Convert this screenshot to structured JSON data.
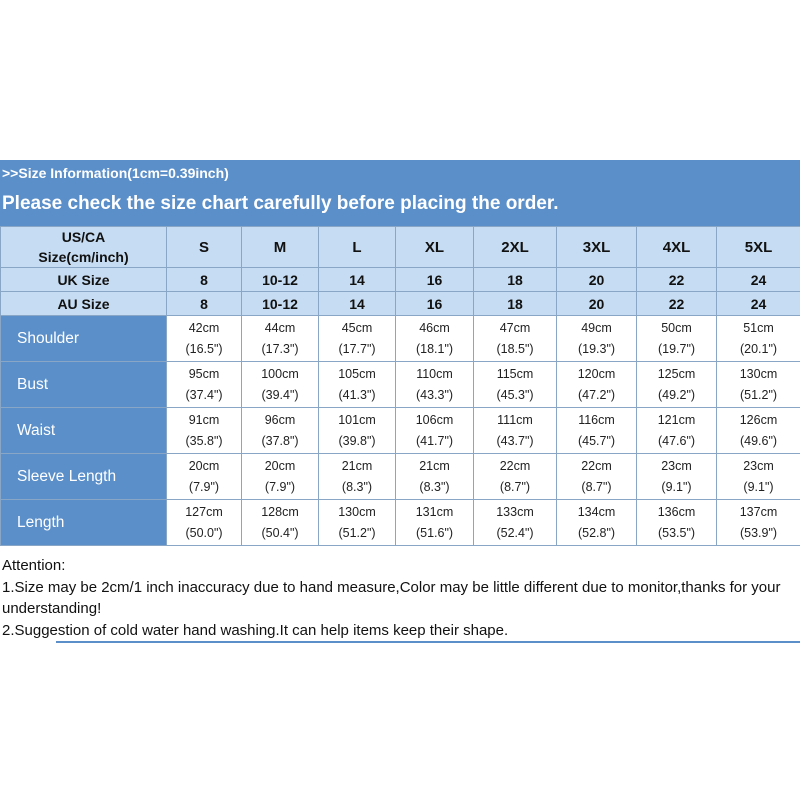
{
  "banner": {
    "info": ">>Size Information(1cm=0.39inch)",
    "notice": "Please check the size chart carefully before placing the order."
  },
  "table": {
    "corner_line1": "US/CA",
    "corner_line2": "Size(cm/inch)",
    "sizes": [
      "S",
      "M",
      "L",
      "XL",
      "2XL",
      "3XL",
      "4XL",
      "5XL"
    ],
    "uk_label": "UK Size",
    "uk": [
      "8",
      "10-12",
      "14",
      "16",
      "18",
      "20",
      "22",
      "24"
    ],
    "au_label": "AU Size",
    "au": [
      "8",
      "10-12",
      "14",
      "16",
      "18",
      "20",
      "22",
      "24"
    ],
    "rows": [
      {
        "label": "Shoulder",
        "cm": [
          "42cm",
          "44cm",
          "45cm",
          "46cm",
          "47cm",
          "49cm",
          "50cm",
          "51cm"
        ],
        "inch": [
          "(16.5\")",
          "(17.3\")",
          "(17.7\")",
          "(18.1\")",
          "(18.5\")",
          "(19.3\")",
          "(19.7\")",
          "(20.1\")"
        ]
      },
      {
        "label": "Bust",
        "cm": [
          "95cm",
          "100cm",
          "105cm",
          "110cm",
          "115cm",
          "120cm",
          "125cm",
          "130cm"
        ],
        "inch": [
          "(37.4\")",
          "(39.4\")",
          "(41.3\")",
          "(43.3\")",
          "(45.3\")",
          "(47.2\")",
          "(49.2\")",
          "(51.2\")"
        ]
      },
      {
        "label": "Waist",
        "cm": [
          "91cm",
          "96cm",
          "101cm",
          "106cm",
          "111cm",
          "116cm",
          "121cm",
          "126cm"
        ],
        "inch": [
          "(35.8\")",
          "(37.8\")",
          "(39.8\")",
          "(41.7\")",
          "(43.7\")",
          "(45.7\")",
          "(47.6\")",
          "(49.6\")"
        ]
      },
      {
        "label": "Sleeve Length",
        "cm": [
          "20cm",
          "20cm",
          "21cm",
          "21cm",
          "22cm",
          "22cm",
          "23cm",
          "23cm"
        ],
        "inch": [
          "(7.9\")",
          "(7.9\")",
          "(8.3\")",
          "(8.3\")",
          "(8.7\")",
          "(8.7\")",
          "(9.1\")",
          "(9.1\")"
        ]
      },
      {
        "label": "Length",
        "cm": [
          "127cm",
          "128cm",
          "130cm",
          "131cm",
          "133cm",
          "134cm",
          "136cm",
          "137cm"
        ],
        "inch": [
          "(50.0\")",
          "(50.4\")",
          "(51.2\")",
          "(51.6\")",
          "(52.4\")",
          "(52.8\")",
          "(53.5\")",
          "(53.9\")"
        ]
      }
    ]
  },
  "attention": {
    "title": "Attention:",
    "note1": "1.Size may be 2cm/1 inch inaccuracy due to hand measure,Color may be little different due to monitor,thanks for your understanding!",
    "note2": "2.Suggestion of cold water hand washing.It can help items keep their shape."
  },
  "colors": {
    "banner": "#5b8fc9",
    "header": "#c6dcf2"
  }
}
